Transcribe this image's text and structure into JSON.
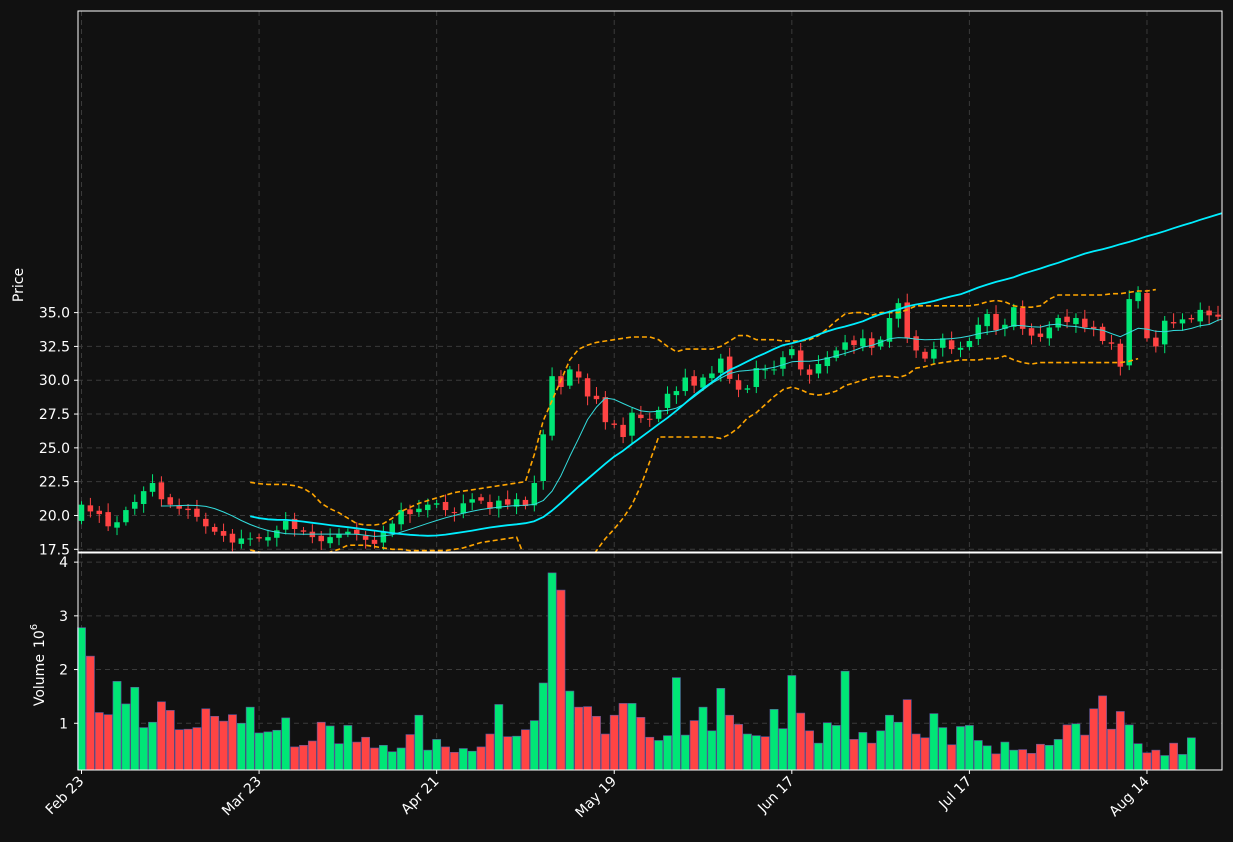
{
  "chart_data": {
    "type": "candlestick",
    "panels": {
      "price": {
        "ylabel": "Price",
        "ylim": [
          17.3,
          57.3
        ],
        "yticks": [
          17.5,
          20.0,
          22.5,
          25.0,
          27.5,
          30.0,
          32.5,
          35.0
        ],
        "ytick_labels": [
          "17.5",
          "20.0",
          "22.5",
          "25.0",
          "27.5",
          "30.0",
          "32.5",
          "35.0"
        ]
      },
      "volume": {
        "ylabel": "Volume",
        "exponent": "10",
        "exponent_power": "6",
        "ylim": [
          0.13,
          4.17
        ],
        "yticks": [
          1,
          2,
          3,
          4
        ],
        "ytick_labels": [
          "1",
          "2",
          "3",
          "4"
        ]
      }
    },
    "x_tick_labels": [
      {
        "label": "Feb 23",
        "index": 0
      },
      {
        "label": "Mar 23",
        "index": 20
      },
      {
        "label": "Apr 21",
        "index": 40
      },
      {
        "label": "May 19",
        "index": 60
      },
      {
        "label": "Jun 17",
        "index": 80
      },
      {
        "label": "Jul 17",
        "index": 100
      },
      {
        "label": "Aug 14",
        "index": 120
      }
    ],
    "grid": true,
    "colors": {
      "background": "#111111",
      "up": "#00e676",
      "down": "#ff4444",
      "ma_short": "#33dddd",
      "ma_long": "#00eeff",
      "band": "#ffa500",
      "grid": "#3a3a3a",
      "text": "#ffffff"
    },
    "series": {
      "close": [
        20.8,
        20.3,
        20.1,
        19.2,
        19.5,
        20.4,
        21.0,
        21.8,
        22.4,
        21.2,
        20.8,
        20.5,
        20.4,
        19.9,
        19.2,
        18.8,
        18.5,
        18.0,
        18.3,
        18.3,
        18.3,
        18.4,
        18.9,
        19.6,
        19.0,
        18.8,
        18.4,
        18.1,
        18.4,
        18.6,
        18.8,
        18.6,
        18.2,
        17.9,
        18.8,
        19.4,
        20.4,
        20.1,
        20.5,
        20.8,
        20.9,
        20.4,
        20.2,
        20.9,
        21.2,
        21.1,
        20.5,
        21.1,
        20.8,
        21.2,
        20.7,
        22.4,
        26.0,
        30.3,
        29.5,
        30.8,
        30.2,
        28.8,
        28.6,
        26.9,
        26.7,
        25.8,
        27.6,
        27.2,
        27.1,
        27.8,
        29.0,
        29.2,
        30.2,
        29.6,
        30.2,
        30.5,
        31.6,
        30.1,
        29.3,
        29.4,
        30.9,
        30.8,
        30.8,
        31.7,
        32.3,
        30.8,
        30.4,
        31.2,
        31.7,
        32.2,
        32.8,
        32.6,
        33.1,
        32.4,
        33.0,
        34.6,
        35.7,
        33.1,
        32.2,
        31.6,
        32.3,
        33.1,
        32.3,
        32.4,
        32.9,
        34.1,
        34.9,
        33.7,
        34.1,
        35.4,
        33.8,
        33.3,
        33.2,
        33.9,
        34.6,
        34.3,
        34.6,
        33.9,
        33.8,
        32.9,
        32.7,
        31.0,
        36.0,
        36.5,
        33.1,
        32.5,
        34.4,
        34.2,
        34.5,
        34.5,
        35.2,
        34.8,
        34.7
      ],
      "ma_short": [
        null,
        null,
        null,
        null,
        null,
        null,
        null,
        null,
        null,
        20.7,
        20.71,
        20.73,
        20.75,
        20.74,
        20.67,
        20.51,
        20.26,
        19.97,
        19.63,
        19.33,
        19.09,
        18.89,
        18.76,
        18.66,
        18.63,
        18.61,
        18.62,
        18.62,
        18.62,
        18.62,
        18.62,
        18.61,
        18.54,
        18.45,
        18.49,
        18.57,
        18.77,
        18.98,
        19.2,
        19.42,
        19.63,
        19.83,
        20.0,
        20.17,
        20.31,
        20.44,
        20.53,
        20.62,
        20.69,
        20.74,
        20.75,
        20.82,
        21.1,
        21.8,
        22.95,
        24.37,
        25.71,
        27.1,
        28.01,
        28.69,
        28.58,
        28.28,
        27.99,
        27.73,
        27.66,
        27.7,
        27.77,
        27.94,
        28.29,
        28.77,
        29.28,
        29.78,
        30.16,
        30.5,
        30.66,
        30.72,
        30.79,
        30.84,
        30.95,
        31.14,
        31.36,
        31.4,
        31.4,
        31.48,
        31.62,
        31.8,
        31.99,
        32.2,
        32.45,
        32.57,
        32.81,
        33.06,
        33.15,
        33.12,
        33.04,
        33.0,
        33.01,
        33.04,
        33.08,
        33.15,
        33.27,
        33.43,
        33.55,
        33.65,
        33.85,
        34.06,
        34.03,
        33.96,
        33.93,
        34.09,
        34.15,
        34.01,
        33.97,
        33.84,
        33.79,
        33.7,
        33.45,
        33.22,
        33.53,
        33.84,
        33.78,
        33.62,
        33.58,
        33.68,
        33.69,
        33.83,
        34.03,
        34.12,
        34.44,
        34.6
      ],
      "ma_long": [
        null,
        null,
        null,
        null,
        null,
        null,
        null,
        null,
        null,
        null,
        null,
        null,
        null,
        null,
        null,
        null,
        null,
        null,
        null,
        19.94,
        19.81,
        19.72,
        19.68,
        19.67,
        19.62,
        19.55,
        19.46,
        19.38,
        19.29,
        19.21,
        19.13,
        19.05,
        18.96,
        18.88,
        18.79,
        18.7,
        18.63,
        18.57,
        18.53,
        18.5,
        18.52,
        18.59,
        18.68,
        18.78,
        18.88,
        19.0,
        19.11,
        19.2,
        19.28,
        19.35,
        19.43,
        19.58,
        19.88,
        20.37,
        20.94,
        21.54,
        22.14,
        22.7,
        23.27,
        23.83,
        24.35,
        24.79,
        25.29,
        25.77,
        26.26,
        26.75,
        27.22,
        27.75,
        28.31,
        28.88,
        29.38,
        29.85,
        30.36,
        30.76,
        31.06,
        31.39,
        31.71,
        32.0,
        32.32,
        32.59,
        32.73,
        32.91,
        33.12,
        33.38,
        33.61,
        33.82,
        33.97,
        34.16,
        34.36,
        34.64,
        34.88,
        35.07,
        35.24,
        35.46,
        35.6,
        35.71,
        35.86,
        36.04,
        36.21,
        36.35,
        36.6,
        36.86,
        37.07,
        37.27,
        37.44,
        37.62,
        37.86,
        38.06,
        38.26,
        38.48,
        38.68,
        38.92,
        39.13,
        39.36,
        39.53,
        39.69,
        39.86,
        40.06,
        40.23,
        40.43,
        40.65,
        40.82,
        41.02,
        41.24,
        41.45,
        41.64,
        41.86,
        42.06,
        42.26,
        42.46,
        42.67
      ],
      "band_upper": [
        null,
        null,
        null,
        null,
        null,
        null,
        null,
        null,
        null,
        null,
        null,
        null,
        null,
        null,
        null,
        null,
        null,
        null,
        null,
        22.45,
        22.35,
        22.3,
        22.3,
        22.3,
        22.2,
        22.0,
        21.6,
        20.9,
        20.5,
        20.2,
        19.8,
        19.4,
        19.3,
        19.3,
        19.4,
        19.8,
        20.3,
        20.6,
        20.9,
        21.1,
        21.3,
        21.5,
        21.7,
        21.8,
        21.9,
        22.0,
        22.1,
        22.2,
        22.3,
        22.4,
        22.5,
        24.5,
        27.0,
        28.5,
        30.0,
        31.5,
        32.3,
        32.6,
        32.8,
        32.9,
        33.0,
        33.1,
        33.2,
        33.2,
        33.2,
        33.0,
        32.5,
        32.1,
        32.3,
        32.3,
        32.3,
        32.3,
        32.5,
        32.9,
        33.3,
        33.3,
        33.0,
        33.0,
        33.0,
        32.9,
        32.9,
        32.9,
        33.0,
        33.3,
        33.8,
        34.4,
        34.9,
        35.0,
        35.0,
        34.8,
        35.0,
        35.0,
        35.0,
        35.2,
        35.5,
        35.5,
        35.5,
        35.5,
        35.5,
        35.5,
        35.5,
        35.6,
        35.8,
        35.9,
        35.8,
        35.5,
        35.4,
        35.4,
        35.5,
        36.0,
        36.3,
        36.3,
        36.3,
        36.3,
        36.3,
        36.3,
        36.4,
        36.4,
        36.5,
        36.6,
        36.6,
        36.7
      ],
      "band_lower": [
        null,
        null,
        null,
        null,
        null,
        null,
        null,
        null,
        null,
        null,
        null,
        null,
        null,
        null,
        null,
        null,
        null,
        null,
        null,
        17.45,
        17.3,
        17.2,
        17.15,
        17.2,
        17.2,
        17.1,
        16.8,
        17.1,
        17.3,
        17.5,
        17.8,
        17.8,
        17.8,
        17.7,
        17.6,
        17.5,
        17.5,
        17.4,
        17.4,
        17.4,
        17.4,
        17.4,
        17.5,
        17.6,
        17.8,
        18.0,
        18.1,
        18.2,
        18.3,
        18.4,
        16.8,
        14.0,
        11.0,
        10.5,
        11.5,
        13.0,
        15.0,
        16.5,
        17.4,
        18.3,
        19.0,
        19.8,
        20.8,
        22.2,
        24.0,
        25.8,
        25.8,
        25.8,
        25.8,
        25.8,
        25.8,
        25.8,
        25.7,
        26.0,
        26.5,
        27.2,
        27.6,
        28.2,
        28.8,
        29.3,
        29.5,
        29.3,
        29.0,
        28.9,
        29.0,
        29.2,
        29.6,
        29.8,
        30.0,
        30.2,
        30.3,
        30.3,
        30.2,
        30.4,
        30.9,
        31.0,
        31.2,
        31.3,
        31.4,
        31.5,
        31.5,
        31.5,
        31.6,
        31.6,
        31.8,
        31.5,
        31.3,
        31.2,
        31.3,
        31.3,
        31.3,
        31.3,
        31.3,
        31.3,
        31.3,
        31.3,
        31.3,
        31.3,
        31.4,
        31.6
      ]
    },
    "volume": [
      2.78,
      2.25,
      1.2,
      1.16,
      1.78,
      1.36,
      1.67,
      0.92,
      1.02,
      1.4,
      1.24,
      0.88,
      0.89,
      0.92,
      1.27,
      1.13,
      1.04,
      1.16,
      1.0,
      1.3,
      0.82,
      0.84,
      0.87,
      1.1,
      0.56,
      0.59,
      0.67,
      1.02,
      0.95,
      0.62,
      0.96,
      0.65,
      0.74,
      0.54,
      0.59,
      0.47,
      0.54,
      0.79,
      1.15,
      0.5,
      0.7,
      0.56,
      0.46,
      0.53,
      0.48,
      0.56,
      0.8,
      1.35,
      0.75,
      0.76,
      0.88,
      1.05,
      1.75,
      3.8,
      3.48,
      1.6,
      1.3,
      1.31,
      1.13,
      0.8,
      1.15,
      1.37,
      1.37,
      1.11,
      0.74,
      0.68,
      0.77,
      1.85,
      0.78,
      1.05,
      1.3,
      0.86,
      1.65,
      1.15,
      0.98,
      0.8,
      0.77,
      0.75,
      1.26,
      0.9,
      1.89,
      1.19,
      0.86,
      0.63,
      1.01,
      0.96,
      1.97,
      0.7,
      0.83,
      0.63,
      0.86,
      1.15,
      1.02,
      1.44,
      0.8,
      0.73,
      1.18,
      0.92,
      0.6,
      0.94,
      0.96,
      0.68,
      0.58,
      0.43,
      0.65,
      0.5,
      0.51,
      0.44,
      0.61,
      0.59,
      0.7,
      0.97,
      0.99,
      0.78,
      1.27,
      1.51,
      0.89,
      1.22,
      0.97,
      0.62,
      0.45,
      0.5,
      0.4,
      0.63,
      0.42,
      0.73
    ]
  }
}
